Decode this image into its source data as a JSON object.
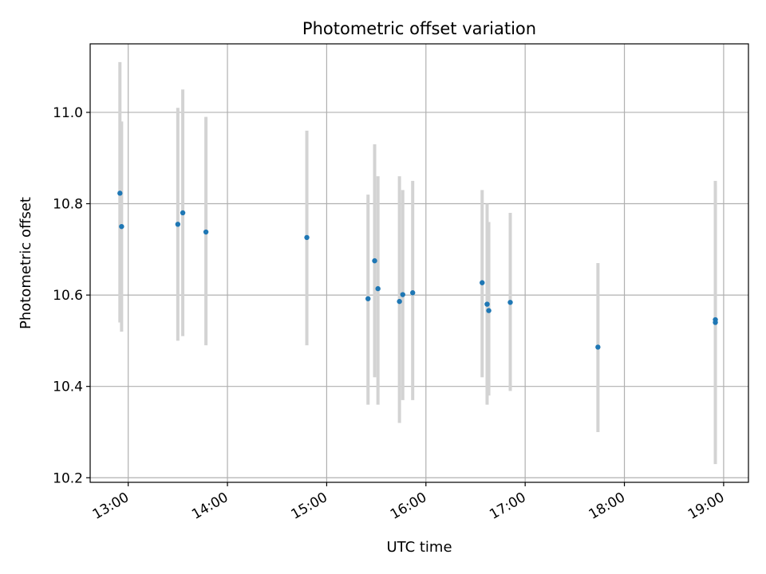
{
  "chart_data": {
    "type": "scatter",
    "title": "Photometric offset variation",
    "xlabel": "UTC time",
    "ylabel": "Photometric offset",
    "xlim": [
      "12:37",
      "19:15"
    ],
    "ylim": [
      10.19,
      11.15
    ],
    "x_ticks": [
      "13:00",
      "14:00",
      "15:00",
      "16:00",
      "17:00",
      "18:00",
      "19:00"
    ],
    "y_ticks": [
      "10.2",
      "10.4",
      "10.6",
      "10.8",
      "11.0"
    ],
    "grid": true,
    "colors": {
      "marker": "#1f77b4",
      "errorbar": "#d3d3d3",
      "grid": "#b0b0b0"
    },
    "series": [
      {
        "points": [
          {
            "x": "12:55",
            "y": 10.823,
            "y_low": 10.54,
            "y_high": 11.11
          },
          {
            "x": "12:56",
            "y": 10.75,
            "y_low": 10.52,
            "y_high": 10.98
          },
          {
            "x": "13:30",
            "y": 10.755,
            "y_low": 10.5,
            "y_high": 11.01
          },
          {
            "x": "13:33",
            "y": 10.78,
            "y_low": 10.51,
            "y_high": 11.05
          },
          {
            "x": "13:47",
            "y": 10.738,
            "y_low": 10.49,
            "y_high": 10.99
          },
          {
            "x": "14:48",
            "y": 10.726,
            "y_low": 10.49,
            "y_high": 10.96
          },
          {
            "x": "15:25",
            "y": 10.592,
            "y_low": 10.36,
            "y_high": 10.82
          },
          {
            "x": "15:29",
            "y": 10.675,
            "y_low": 10.42,
            "y_high": 10.93
          },
          {
            "x": "15:31",
            "y": 10.614,
            "y_low": 10.36,
            "y_high": 10.86
          },
          {
            "x": "15:44",
            "y": 10.586,
            "y_low": 10.32,
            "y_high": 10.86
          },
          {
            "x": "15:46",
            "y": 10.601,
            "y_low": 10.37,
            "y_high": 10.83
          },
          {
            "x": "15:52",
            "y": 10.605,
            "y_low": 10.37,
            "y_high": 10.85
          },
          {
            "x": "16:34",
            "y": 10.627,
            "y_low": 10.42,
            "y_high": 10.83
          },
          {
            "x": "16:37",
            "y": 10.58,
            "y_low": 10.36,
            "y_high": 10.8
          },
          {
            "x": "16:38",
            "y": 10.566,
            "y_low": 10.38,
            "y_high": 10.76
          },
          {
            "x": "16:51",
            "y": 10.584,
            "y_low": 10.39,
            "y_high": 10.78
          },
          {
            "x": "17:44",
            "y": 10.486,
            "y_low": 10.3,
            "y_high": 10.67
          },
          {
            "x": "18:55",
            "y": 10.54,
            "y_low": 10.23,
            "y_high": 10.85
          },
          {
            "x": "18:55",
            "y": 10.546,
            "y_low": 10.26,
            "y_high": 10.84
          }
        ]
      }
    ]
  }
}
